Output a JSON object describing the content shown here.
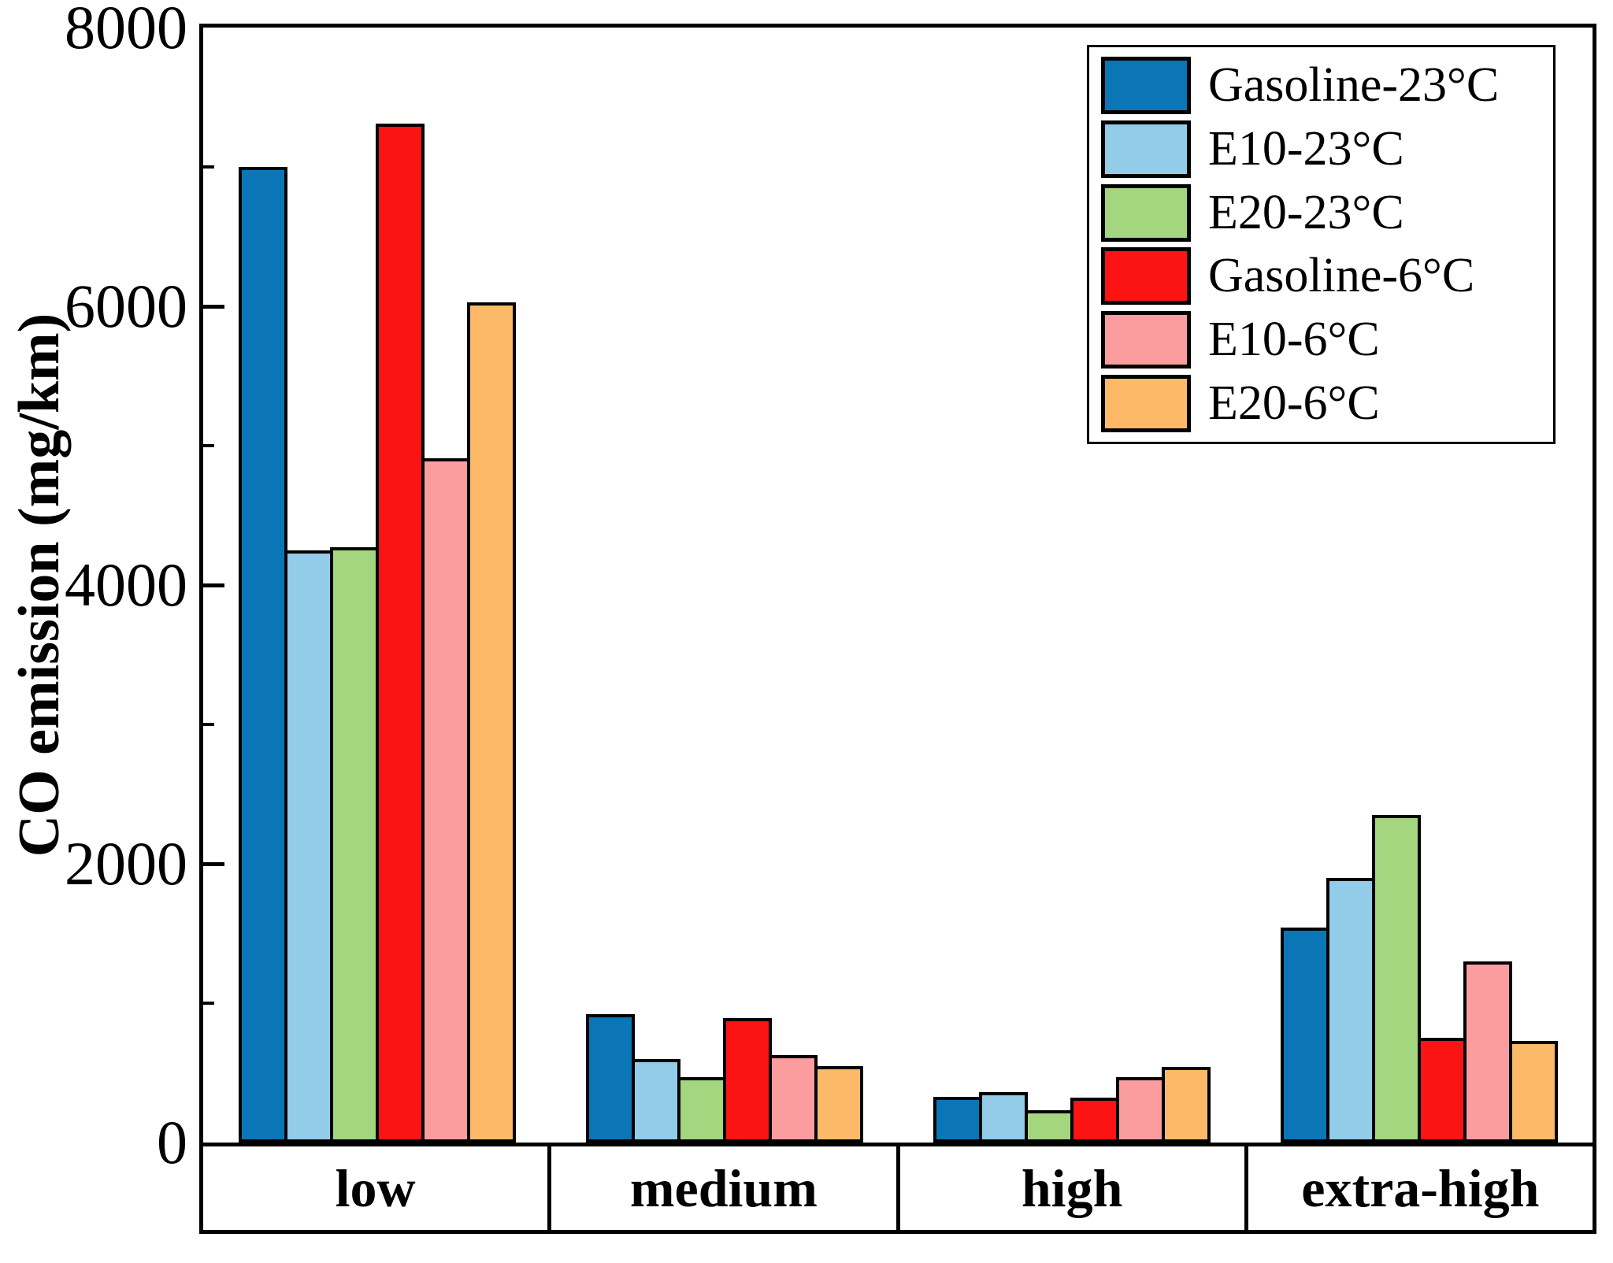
{
  "figure": {
    "background": "#ffffff",
    "axis_color": "#000000"
  },
  "chart_data": {
    "type": "bar",
    "title": "",
    "xlabel": "",
    "ylabel": "CO emission (mg/km)",
    "ylim": [
      0,
      8000
    ],
    "ytick_major": [
      0,
      2000,
      4000,
      6000,
      8000
    ],
    "ytick_minor": [
      1000,
      3000,
      5000,
      7000
    ],
    "grid": false,
    "legend_position": "upper-right",
    "categories": [
      "low",
      "medium",
      "high",
      "extra-high"
    ],
    "series": [
      {
        "name": "Gasoline-23°C",
        "color": "#0a76b6",
        "values": [
          7000,
          920,
          330,
          1540
        ]
      },
      {
        "name": "E10-23°C",
        "color": "#92cce9",
        "values": [
          4250,
          600,
          360,
          1900
        ]
      },
      {
        "name": "E20-23°C",
        "color": "#a3d67f",
        "values": [
          4270,
          470,
          230,
          2350
        ]
      },
      {
        "name": "Gasoline-6°C",
        "color": "#fc1314",
        "values": [
          7310,
          890,
          320,
          750
        ]
      },
      {
        "name": "E10-6°C",
        "color": "#fb9d9e",
        "values": [
          4910,
          630,
          470,
          1300
        ]
      },
      {
        "name": "E20-6°C",
        "color": "#fcba68",
        "values": [
          6030,
          550,
          540,
          730
        ]
      }
    ]
  }
}
